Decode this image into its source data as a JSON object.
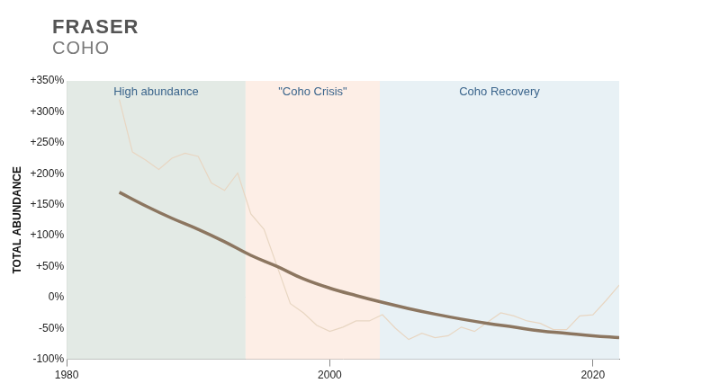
{
  "chart_data": {
    "type": "line",
    "title": "FRASER",
    "subtitle": "COHO",
    "y_label": "TOTAL ABUNDANCE",
    "xlim": [
      1980,
      2022
    ],
    "xticks": [
      1980,
      2000,
      2020
    ],
    "ylim": [
      -100,
      350
    ],
    "yticks": [
      {
        "value": -100,
        "label": "-100%"
      },
      {
        "value": -50,
        "label": "-50%"
      },
      {
        "value": 0,
        "label": "0%"
      },
      {
        "value": 50,
        "label": "+50%"
      },
      {
        "value": 100,
        "label": "+100%"
      },
      {
        "value": 150,
        "label": "+150%"
      },
      {
        "value": 200,
        "label": "+200%"
      },
      {
        "value": 250,
        "label": "+250%"
      },
      {
        "value": 300,
        "label": "+300%"
      },
      {
        "value": 350,
        "label": "+350%"
      }
    ],
    "grid": false,
    "regions": [
      {
        "label": "High abundance",
        "start": 1980,
        "end": 1993.6,
        "color": "#e3eae5"
      },
      {
        "label": "\"Coho Crisis\"",
        "start": 1993.6,
        "end": 2003.8,
        "color": "#fdeee6"
      },
      {
        "label": "Coho Recovery",
        "start": 2003.8,
        "end": 2022,
        "color": "#e8f1f5"
      }
    ],
    "series": [
      {
        "color": "#e8d6c2",
        "line_style": "solid",
        "x": [
          1984,
          1985,
          1986,
          1987,
          1988,
          1989,
          1990,
          1991,
          1992,
          1993,
          1994,
          1995,
          1996,
          1997,
          1998,
          1999,
          2000,
          2001,
          2002,
          2003,
          2004,
          2005,
          2006,
          2007,
          2008,
          2009,
          2010,
          2011,
          2012,
          2013,
          2014,
          2015,
          2016,
          2017,
          2018,
          2019,
          2020,
          2021,
          2022
        ],
        "values": [
          320,
          235,
          222,
          207,
          225,
          233,
          228,
          185,
          173,
          201,
          135,
          110,
          50,
          -10,
          -25,
          -45,
          -55,
          -48,
          -38,
          -38,
          -28,
          -50,
          -68,
          -58,
          -65,
          -62,
          -48,
          -55,
          -40,
          -25,
          -30,
          -38,
          -42,
          -52,
          -52,
          -30,
          -28,
          -5,
          20
        ]
      },
      {
        "color": "#8c7660",
        "line_style": "solid",
        "x": [
          1984,
          1986,
          1988,
          1990,
          1992,
          1994,
          1996,
          1998,
          2000,
          2002,
          2004,
          2006,
          2008,
          2010,
          2012,
          2014,
          2016,
          2018,
          2020,
          2022
        ],
        "values": [
          170,
          148,
          128,
          110,
          90,
          68,
          50,
          30,
          15,
          3,
          -8,
          -18,
          -27,
          -35,
          -42,
          -48,
          -54,
          -58,
          -62,
          -65
        ]
      }
    ]
  }
}
